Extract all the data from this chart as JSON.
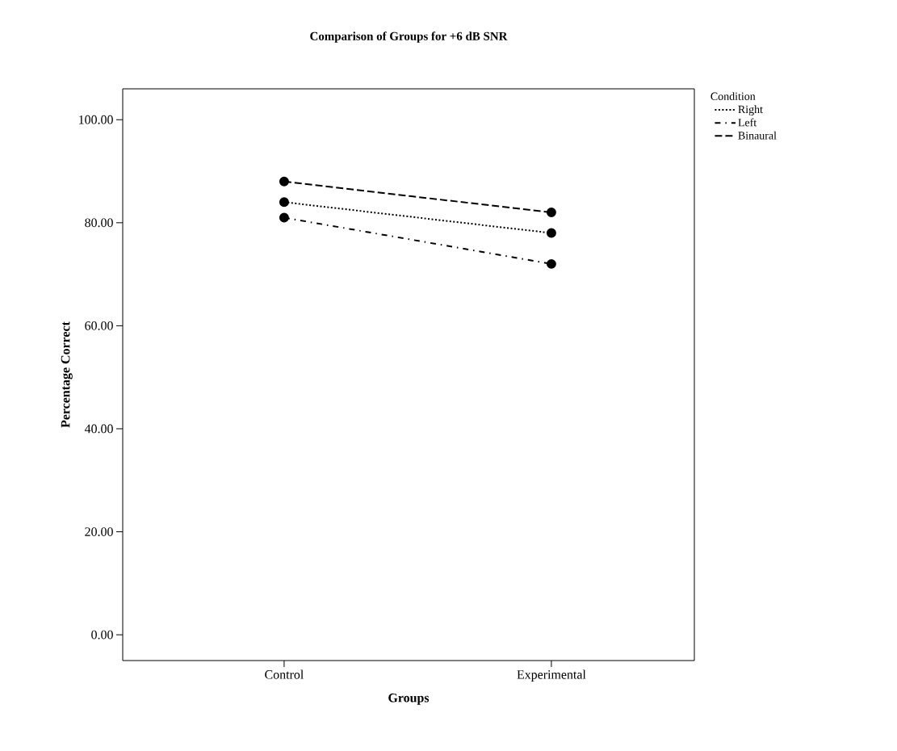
{
  "chart_data": {
    "type": "line",
    "title": "Comparison of Groups for +6 dB SNR",
    "xlabel": "Groups",
    "ylabel": "Percentage Correct",
    "legend_title": "Condition",
    "categories": [
      "Control",
      "Experimental"
    ],
    "series": [
      {
        "name": "Right",
        "color": "#000000",
        "values": [
          84,
          78
        ],
        "line_style": "dotted"
      },
      {
        "name": "Left",
        "color": "#000000",
        "values": [
          81,
          72
        ],
        "line_style": "dashdot"
      },
      {
        "name": "Binaural",
        "color": "#000000",
        "values": [
          88,
          82
        ],
        "line_style": "dashed"
      }
    ],
    "ylim": [
      -5,
      106
    ],
    "yticks": [
      {
        "value": 0,
        "label": "0.00"
      },
      {
        "value": 20,
        "label": "20.00"
      },
      {
        "value": 40,
        "label": "40.00"
      },
      {
        "value": 60,
        "label": "60.00"
      },
      {
        "value": 80,
        "label": "80.00"
      },
      {
        "value": 100,
        "label": "100.00"
      }
    ],
    "marker": "circle",
    "legend": "top right",
    "grid": false
  }
}
